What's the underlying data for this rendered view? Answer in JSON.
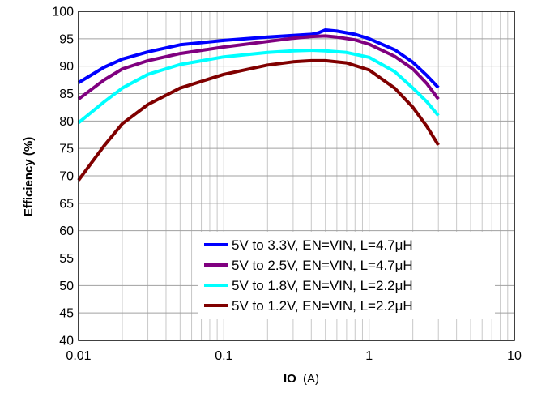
{
  "chart_data": {
    "type": "line",
    "title": "",
    "xlabel_bold": "IO",
    "xlabel_unit": "(A)",
    "ylabel": "Efficiency (%)",
    "xscale": "log",
    "xlim": [
      0.01,
      10
    ],
    "ylim": [
      40,
      100
    ],
    "x_ticks": [
      0.01,
      0.1,
      1,
      10
    ],
    "x_tick_labels": [
      "0.01",
      "0.1",
      "1",
      "10"
    ],
    "y_ticks": [
      40,
      45,
      50,
      55,
      60,
      65,
      70,
      75,
      80,
      85,
      90,
      95,
      100
    ],
    "y_tick_labels": [
      "40",
      "45",
      "50",
      "55",
      "60",
      "65",
      "70",
      "75",
      "80",
      "85",
      "90",
      "95",
      "100"
    ],
    "grid": true,
    "legend_position": "bottom-right",
    "series": [
      {
        "name": "5V to 3.3V, EN=VIN, L=4.7μH",
        "color": "#0000ff",
        "x": [
          0.01,
          0.015,
          0.02,
          0.03,
          0.05,
          0.1,
          0.2,
          0.3,
          0.4,
          0.45,
          0.5,
          0.6,
          0.8,
          1.0,
          1.5,
          2.0,
          2.5,
          3.0
        ],
        "y": [
          87.0,
          89.8,
          91.3,
          92.6,
          93.9,
          94.7,
          95.3,
          95.6,
          95.8,
          96.1,
          96.6,
          96.4,
          95.8,
          95.0,
          93.0,
          90.7,
          88.3,
          86.1
        ]
      },
      {
        "name": "5V to 2.5V, EN=VIN, L=4.7μH",
        "color": "#800080",
        "x": [
          0.01,
          0.015,
          0.02,
          0.03,
          0.05,
          0.1,
          0.2,
          0.3,
          0.4,
          0.5,
          0.6,
          0.8,
          1.0,
          1.5,
          2.0,
          2.5,
          3.0
        ],
        "y": [
          84.0,
          87.5,
          89.5,
          91.0,
          92.3,
          93.5,
          94.5,
          95.1,
          95.4,
          95.5,
          95.3,
          94.8,
          94.0,
          91.8,
          89.5,
          86.8,
          84.0
        ]
      },
      {
        "name": "5V to 1.8V, EN=VIN, L=2.2μH",
        "color": "#00ffff",
        "x": [
          0.01,
          0.015,
          0.02,
          0.03,
          0.05,
          0.1,
          0.2,
          0.3,
          0.4,
          0.5,
          0.7,
          1.0,
          1.5,
          2.0,
          2.5,
          3.0
        ],
        "y": [
          79.7,
          83.5,
          86.0,
          88.5,
          90.3,
          91.7,
          92.5,
          92.8,
          92.9,
          92.8,
          92.5,
          91.6,
          89.0,
          86.0,
          83.5,
          81.0
        ]
      },
      {
        "name": "5V to 1.2V, EN=VIN, L=2.2μH",
        "color": "#800000",
        "x": [
          0.01,
          0.015,
          0.02,
          0.03,
          0.05,
          0.1,
          0.2,
          0.3,
          0.4,
          0.5,
          0.7,
          1.0,
          1.5,
          2.0,
          2.5,
          3.0
        ],
        "y": [
          69.2,
          75.5,
          79.5,
          83.0,
          86.0,
          88.5,
          90.2,
          90.8,
          91.0,
          91.0,
          90.6,
          89.3,
          86.0,
          82.5,
          79.0,
          75.6
        ]
      }
    ]
  }
}
